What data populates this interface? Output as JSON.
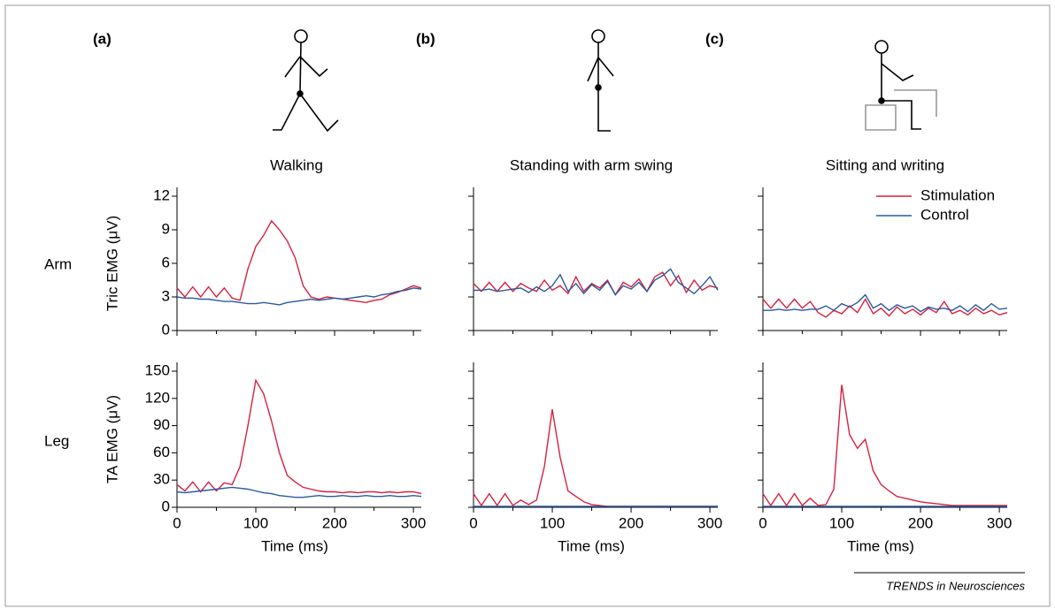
{
  "row_labels": [
    "Arm",
    "Leg"
  ],
  "credit": "TRENDS in Neurosciences",
  "chart_data": [
    {
      "type": "line",
      "panel_label": "(a)",
      "title": "Walking",
      "ylabel": "Tric EMG (μV)",
      "xlim": [
        0,
        310
      ],
      "ylim": [
        0,
        12
      ],
      "xticks": [
        0,
        100,
        200,
        300
      ],
      "xminorticks": [
        50,
        150,
        250
      ],
      "yticks": [
        0,
        3,
        6,
        9,
        12
      ],
      "xtick_labels": false,
      "ytick_labels": true,
      "x": [
        0,
        10,
        20,
        30,
        40,
        50,
        60,
        70,
        80,
        90,
        100,
        110,
        120,
        130,
        140,
        150,
        160,
        170,
        180,
        190,
        200,
        210,
        220,
        230,
        240,
        250,
        260,
        270,
        280,
        290,
        300,
        310
      ],
      "series": [
        {
          "name": "Stimulation",
          "color": "#d6213f",
          "values": [
            3.8,
            3.0,
            3.9,
            3.0,
            3.9,
            3.0,
            3.8,
            2.9,
            2.7,
            5.5,
            7.5,
            8.5,
            9.8,
            9.0,
            8.0,
            6.5,
            4.0,
            3.0,
            2.8,
            3.0,
            2.9,
            2.8,
            2.7,
            2.6,
            2.5,
            2.7,
            2.8,
            3.2,
            3.4,
            3.7,
            4.0,
            3.8
          ]
        },
        {
          "name": "Control",
          "color": "#2a5aa0",
          "values": [
            3.0,
            2.9,
            2.9,
            2.8,
            2.8,
            2.7,
            2.6,
            2.6,
            2.5,
            2.4,
            2.4,
            2.5,
            2.4,
            2.3,
            2.5,
            2.6,
            2.7,
            2.8,
            2.7,
            2.8,
            2.9,
            2.8,
            2.9,
            3.0,
            3.1,
            3.0,
            3.2,
            3.3,
            3.5,
            3.6,
            3.8,
            3.7
          ]
        }
      ]
    },
    {
      "type": "line",
      "panel_label": "(b)",
      "title": "Standing with arm swing",
      "xlim": [
        0,
        310
      ],
      "ylim": [
        0,
        12
      ],
      "xticks": [
        0,
        100,
        200,
        300
      ],
      "xminorticks": [
        50,
        150,
        250
      ],
      "yticks": [
        0,
        3,
        6,
        9,
        12
      ],
      "xtick_labels": false,
      "ytick_labels": false,
      "x": [
        0,
        10,
        20,
        30,
        40,
        50,
        60,
        70,
        80,
        90,
        100,
        110,
        120,
        130,
        140,
        150,
        160,
        170,
        180,
        190,
        200,
        210,
        220,
        230,
        240,
        250,
        260,
        270,
        280,
        290,
        300,
        310
      ],
      "series": [
        {
          "color": "#d6213f",
          "values": [
            4.2,
            3.5,
            4.3,
            3.5,
            4.3,
            3.5,
            4.2,
            3.8,
            3.5,
            4.5,
            3.6,
            4.0,
            3.3,
            4.8,
            3.5,
            4.2,
            3.8,
            4.5,
            3.2,
            4.3,
            3.9,
            4.6,
            3.5,
            4.8,
            5.2,
            4.0,
            4.9,
            3.4,
            4.5,
            3.6,
            4.0,
            3.8
          ]
        },
        {
          "color": "#2a5aa0",
          "values": [
            3.6,
            3.6,
            3.7,
            3.5,
            3.6,
            3.7,
            3.8,
            3.4,
            3.9,
            3.5,
            4.0,
            5.0,
            3.5,
            4.2,
            3.3,
            4.1,
            3.6,
            4.4,
            3.2,
            4.0,
            3.7,
            4.3,
            3.5,
            4.5,
            4.9,
            5.5,
            4.3,
            3.8,
            3.3,
            4.0,
            4.8,
            3.6
          ]
        }
      ]
    },
    {
      "type": "line",
      "panel_label": "(c)",
      "title": "Sitting and writing",
      "legend": "upper right",
      "xlim": [
        0,
        310
      ],
      "ylim": [
        0,
        12
      ],
      "xticks": [
        0,
        100,
        200,
        300
      ],
      "xminorticks": [
        50,
        150,
        250
      ],
      "yticks": [
        0,
        3,
        6,
        9,
        12
      ],
      "xtick_labels": false,
      "ytick_labels": false,
      "x": [
        0,
        10,
        20,
        30,
        40,
        50,
        60,
        70,
        80,
        90,
        100,
        110,
        120,
        130,
        140,
        150,
        160,
        170,
        180,
        190,
        200,
        210,
        220,
        230,
        240,
        250,
        260,
        270,
        280,
        290,
        300,
        310
      ],
      "series": [
        {
          "name": "Stimulation",
          "color": "#d6213f",
          "values": [
            2.8,
            2.0,
            2.8,
            2.0,
            2.8,
            2.0,
            2.6,
            1.6,
            1.2,
            1.8,
            1.5,
            2.2,
            1.6,
            2.8,
            1.5,
            2.0,
            1.3,
            2.1,
            1.5,
            1.9,
            1.4,
            2.0,
            1.6,
            2.6,
            1.5,
            1.8,
            1.4,
            2.0,
            1.5,
            1.8,
            1.4,
            1.6
          ]
        },
        {
          "name": "Control",
          "color": "#2a5aa0",
          "values": [
            1.8,
            1.8,
            1.9,
            1.8,
            1.9,
            1.8,
            1.9,
            1.9,
            2.2,
            1.8,
            2.4,
            2.1,
            2.5,
            3.2,
            2.0,
            2.4,
            1.8,
            2.3,
            2.0,
            2.2,
            1.7,
            2.1,
            1.9,
            2.0,
            1.8,
            2.2,
            1.7,
            2.3,
            1.8,
            2.4,
            1.9,
            2.0
          ]
        }
      ]
    },
    {
      "type": "line",
      "ylabel": "TA EMG (μV)",
      "xlabel": "Time (ms)",
      "xlim": [
        0,
        310
      ],
      "ylim": [
        0,
        150
      ],
      "xticks": [
        0,
        100,
        200,
        300
      ],
      "xminorticks": [
        50,
        150,
        250
      ],
      "yticks": [
        0,
        30,
        60,
        90,
        120,
        150
      ],
      "xtick_labels": true,
      "ytick_labels": true,
      "x": [
        0,
        10,
        20,
        30,
        40,
        50,
        60,
        70,
        80,
        90,
        100,
        110,
        120,
        130,
        140,
        150,
        160,
        170,
        180,
        190,
        200,
        210,
        220,
        230,
        240,
        250,
        260,
        270,
        280,
        290,
        300,
        310
      ],
      "series": [
        {
          "color": "#d6213f",
          "values": [
            25,
            18,
            28,
            17,
            28,
            18,
            27,
            25,
            45,
            90,
            140,
            125,
            95,
            60,
            35,
            28,
            22,
            20,
            18,
            17,
            17,
            16,
            17,
            16,
            17,
            17,
            16,
            17,
            16,
            17,
            17,
            15
          ]
        },
        {
          "color": "#2a5aa0",
          "values": [
            17,
            16,
            17,
            18,
            19,
            20,
            21,
            22,
            21,
            20,
            18,
            16,
            15,
            13,
            12,
            11,
            11,
            12,
            13,
            12,
            12,
            13,
            12,
            12,
            13,
            12,
            12,
            13,
            12,
            12,
            13,
            12
          ]
        }
      ]
    },
    {
      "type": "line",
      "xlabel": "Time (ms)",
      "xlim": [
        0,
        310
      ],
      "ylim": [
        0,
        150
      ],
      "xticks": [
        0,
        100,
        200,
        300
      ],
      "xminorticks": [
        50,
        150,
        250
      ],
      "yticks": [
        0,
        30,
        60,
        90,
        120,
        150
      ],
      "xtick_labels": true,
      "ytick_labels": false,
      "x": [
        0,
        10,
        20,
        30,
        40,
        50,
        60,
        70,
        80,
        90,
        100,
        110,
        120,
        130,
        140,
        150,
        160,
        170,
        180,
        190,
        200,
        210,
        220,
        230,
        240,
        250,
        260,
        270,
        280,
        290,
        300,
        310
      ],
      "series": [
        {
          "color": "#d6213f",
          "values": [
            15,
            2,
            15,
            2,
            15,
            2,
            8,
            3,
            8,
            45,
            108,
            55,
            18,
            12,
            6,
            3,
            2,
            1,
            1,
            1,
            1,
            1,
            1,
            1,
            1,
            1,
            1,
            1,
            1,
            1,
            1,
            1
          ]
        },
        {
          "color": "#2a5aa0",
          "values": [
            1,
            1,
            1,
            1,
            1,
            1,
            1,
            1,
            1,
            1,
            1,
            1,
            1,
            1,
            1,
            1,
            1,
            1,
            1,
            1,
            1,
            1,
            1,
            1,
            1,
            1,
            1,
            1,
            1,
            1,
            1,
            1
          ]
        }
      ]
    },
    {
      "type": "line",
      "xlabel": "Time (ms)",
      "xlim": [
        0,
        310
      ],
      "ylim": [
        0,
        150
      ],
      "xticks": [
        0,
        100,
        200,
        300
      ],
      "xminorticks": [
        50,
        150,
        250
      ],
      "yticks": [
        0,
        30,
        60,
        90,
        120,
        150
      ],
      "xtick_labels": true,
      "ytick_labels": false,
      "x": [
        0,
        10,
        20,
        30,
        40,
        50,
        60,
        70,
        80,
        90,
        100,
        110,
        120,
        130,
        140,
        150,
        160,
        170,
        180,
        190,
        200,
        210,
        220,
        230,
        240,
        250,
        260,
        270,
        280,
        290,
        300,
        310
      ],
      "series": [
        {
          "color": "#d6213f",
          "values": [
            15,
            2,
            15,
            2,
            15,
            2,
            10,
            2,
            3,
            20,
            135,
            80,
            65,
            75,
            40,
            25,
            18,
            12,
            10,
            8,
            6,
            5,
            4,
            3,
            2,
            2,
            2,
            2,
            2,
            2,
            2,
            2
          ]
        },
        {
          "color": "#2a5aa0",
          "values": [
            1,
            1,
            1,
            1,
            1,
            1,
            1,
            1,
            1,
            1,
            1,
            1,
            1,
            1,
            1,
            1,
            1,
            1,
            1,
            1,
            1,
            1,
            1,
            1,
            1,
            1,
            1,
            1,
            1,
            1,
            1,
            1
          ]
        }
      ]
    }
  ]
}
